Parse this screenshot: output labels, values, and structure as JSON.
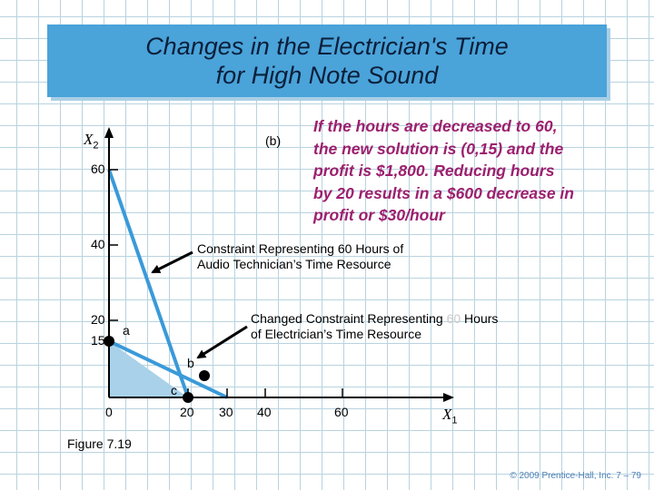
{
  "title": {
    "line1": "Changes in the Electrician's Time",
    "line2": "for High Note Sound"
  },
  "explanation": {
    "lines": [
      "If the hours are decreased to 60,",
      "the new solution is (0,15)  and the",
      "profit is $1,800. Reducing hours",
      "by 20 results in a $600 decrease in",
      "profit or $30/hour"
    ],
    "color": "#9c1f6e"
  },
  "panel_label": "(b)",
  "axes": {
    "y_var": "X",
    "y_sub": "2",
    "x_var": "X",
    "x_sub": "1",
    "y_ticks": [
      "60",
      "40",
      "20",
      "15"
    ],
    "x_ticks": [
      "0",
      "20",
      "30",
      "40",
      "60"
    ]
  },
  "annotations": {
    "audio_line1": "Constraint Representing 60 Hours of",
    "audio_line2": "Audio Technician’s Time Resource",
    "elec_line1_pre": "Changed Constraint Representing ",
    "elec_line1_hl": "60",
    "elec_line1_post": " Hours",
    "elec_line2": "of Electrician’s Time Resource"
  },
  "points": {
    "a": "a",
    "b": "b",
    "c": "c"
  },
  "figure_label": "Figure  7.19",
  "footer": "© 2009 Prentice-Hall, Inc.   7 – 79",
  "colors": {
    "constraint_line": "#3a9ad9",
    "feasible_region": "#a9d2ea",
    "title_bg": "#4aa3d9"
  }
}
